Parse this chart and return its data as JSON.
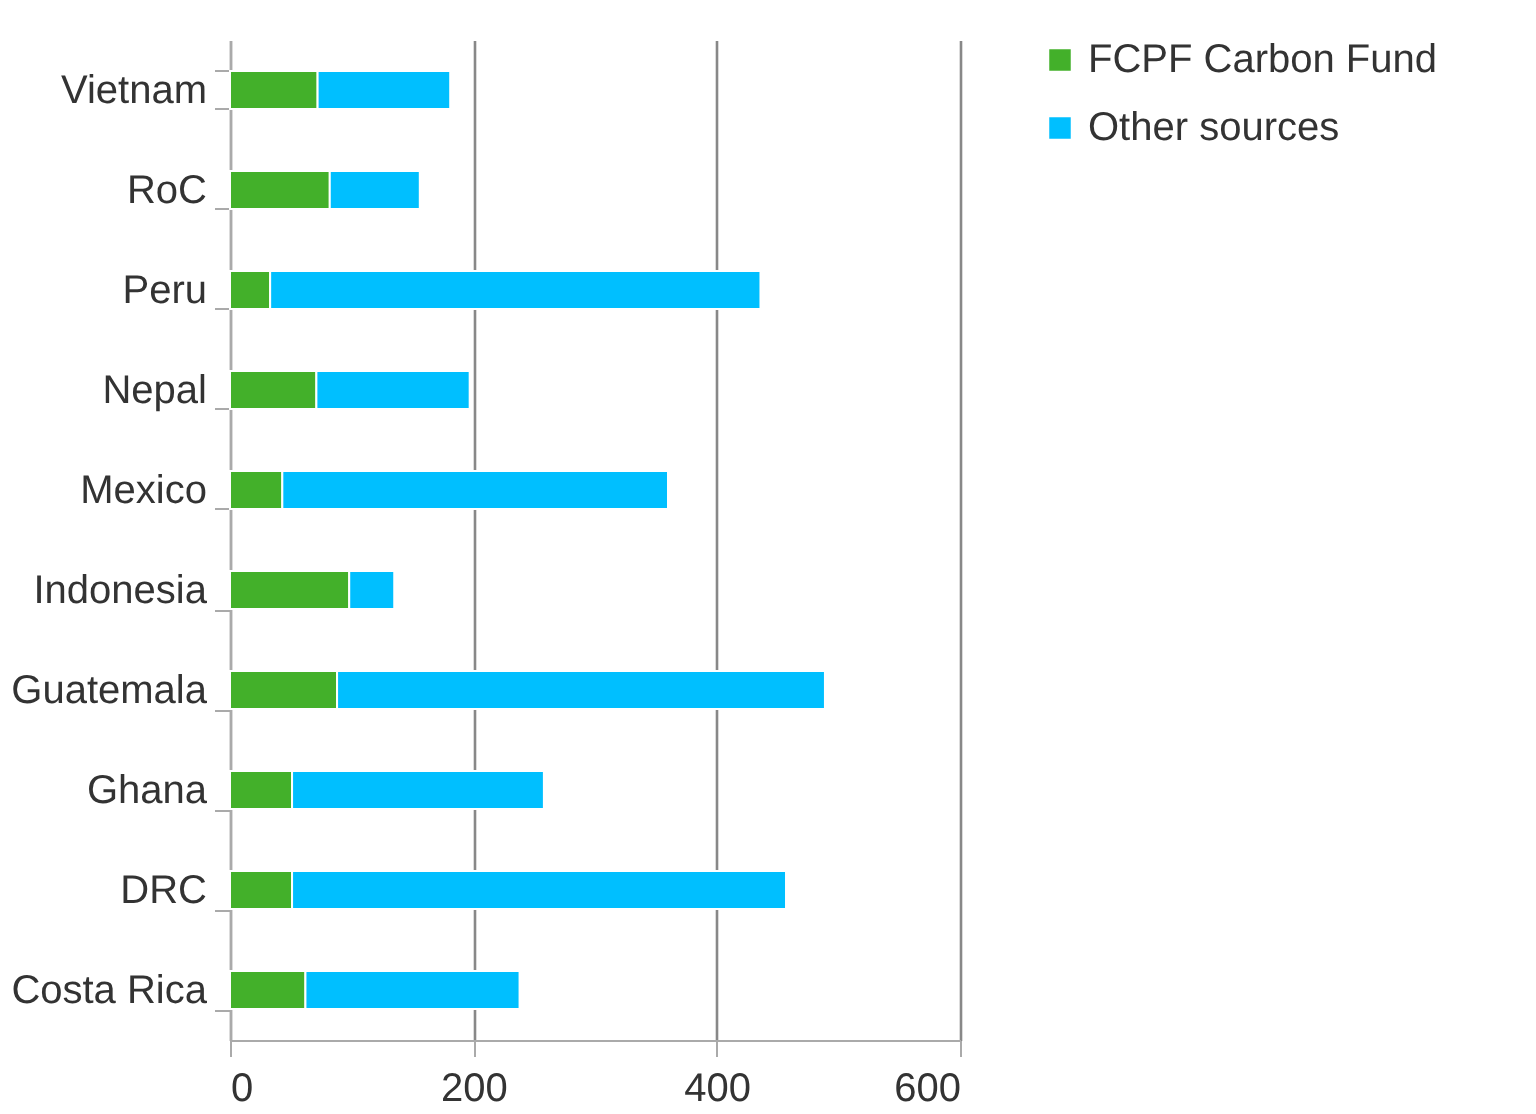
{
  "chart_data": {
    "type": "bar",
    "orientation": "horizontal",
    "stacked": true,
    "categories": [
      "Vietnam",
      "RoC",
      "Peru",
      "Nepal",
      "Mexico",
      "Indonesia",
      "Guatemala",
      "Ghana",
      "DRC",
      "Costa Rica"
    ],
    "series": [
      {
        "name": "FCPF Carbon Fund",
        "color": "#43b02a",
        "values": [
          72,
          82,
          33,
          71,
          43,
          98,
          88,
          51,
          51,
          62
        ]
      },
      {
        "name": "Other sources",
        "color": "#00bfff",
        "values": [
          109,
          74,
          403,
          126,
          317,
          37,
          401,
          207,
          406,
          176
        ]
      }
    ],
    "xlim": [
      0,
      600
    ],
    "xticks": [
      0,
      200,
      400,
      600
    ],
    "grid": "x",
    "legend": "right"
  }
}
